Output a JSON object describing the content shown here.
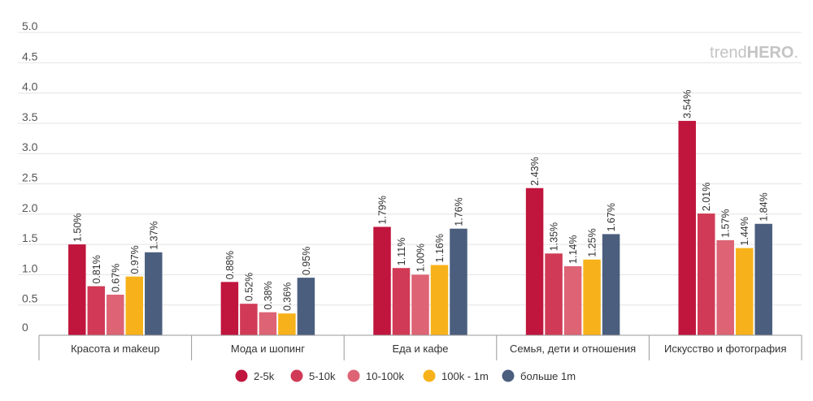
{
  "watermark": {
    "light": "trend",
    "bold": "HERO",
    "mark": "."
  },
  "chart_data": {
    "type": "bar",
    "y_ticks": [
      "5.0",
      "4.5",
      "4.0",
      "3.5",
      "3.0",
      "2.5",
      "2.0",
      "1.5",
      "1.0",
      "0.5",
      "0"
    ],
    "ylim": [
      0,
      5
    ],
    "grid": true,
    "legend_position": "bottom",
    "categories": [
      "Красота и makeup",
      "Мода и шопинг",
      "Еда и кафе",
      "Семья, дети и отношения",
      "Искусство и фотография"
    ],
    "series": [
      {
        "name": "2-5k",
        "color": "#c0153d",
        "values": [
          1.5,
          0.88,
          1.79,
          2.43,
          3.54
        ],
        "labels": [
          "1.50%",
          "0.88%",
          "1.79%",
          "2.43%",
          "3.54%"
        ]
      },
      {
        "name": "5-10k",
        "color": "#d13a56",
        "values": [
          0.81,
          0.52,
          1.11,
          1.35,
          2.01
        ],
        "labels": [
          "0.81%",
          "0.52%",
          "1.11%",
          "1.35%",
          "2.01%"
        ]
      },
      {
        "name": "10-100k",
        "color": "#dd6375",
        "values": [
          0.67,
          0.38,
          1.0,
          1.14,
          1.57
        ],
        "labels": [
          "0.67%",
          "0.38%",
          "1.00%",
          "1.14%",
          "1.57%"
        ]
      },
      {
        "name": "100k - 1m",
        "color": "#f7b21b",
        "values": [
          0.97,
          0.36,
          1.16,
          1.25,
          1.44
        ],
        "labels": [
          "0.97%",
          "0.36%",
          "1.16%",
          "1.25%",
          "1.44%"
        ]
      },
      {
        "name": "больше 1m",
        "color": "#4b5e7e",
        "values": [
          1.37,
          0.95,
          1.76,
          1.67,
          1.84
        ],
        "labels": [
          "1.37%",
          "0.95%",
          "1.76%",
          "1.67%",
          "1.84%"
        ]
      }
    ]
  }
}
